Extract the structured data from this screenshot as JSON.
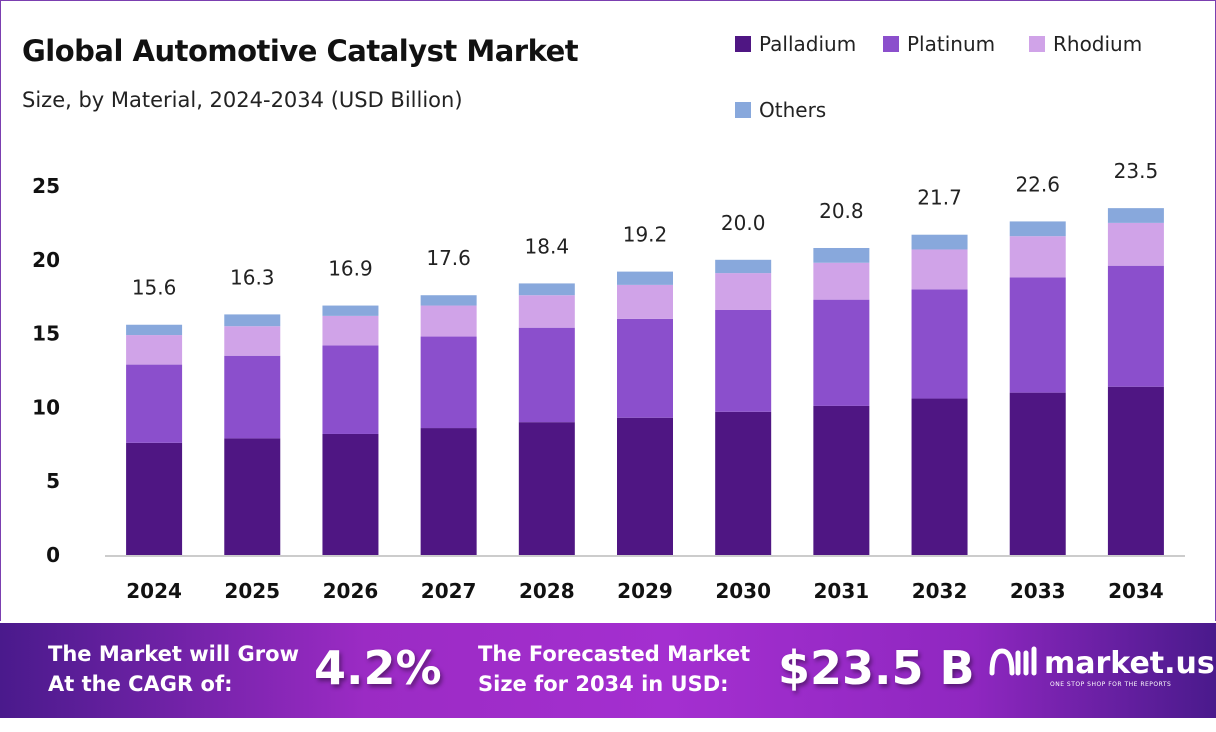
{
  "header": {
    "title": "Global Automotive Catalyst Market",
    "subtitle": "Size, by Material, 2024-2034 (USD Billion)"
  },
  "chart_data": {
    "type": "bar",
    "stacked": true,
    "categories": [
      "2024",
      "2025",
      "2026",
      "2027",
      "2028",
      "2029",
      "2030",
      "2031",
      "2032",
      "2033",
      "2034"
    ],
    "series": [
      {
        "name": "Palladium",
        "color": "#4f1683",
        "values": [
          7.6,
          7.9,
          8.2,
          8.6,
          9.0,
          9.3,
          9.7,
          10.1,
          10.6,
          11.0,
          11.4
        ]
      },
      {
        "name": "Platinum",
        "color": "#8b4fcc",
        "values": [
          5.3,
          5.6,
          6.0,
          6.2,
          6.4,
          6.7,
          6.9,
          7.2,
          7.4,
          7.8,
          8.2
        ]
      },
      {
        "name": "Rhodium",
        "color": "#d0a3e8",
        "values": [
          2.0,
          2.0,
          2.0,
          2.1,
          2.2,
          2.3,
          2.5,
          2.5,
          2.7,
          2.8,
          2.9
        ]
      },
      {
        "name": "Others",
        "color": "#88a8dc",
        "values": [
          0.7,
          0.8,
          0.7,
          0.7,
          0.8,
          0.9,
          0.9,
          1.0,
          1.0,
          1.0,
          1.0
        ]
      }
    ],
    "totals": [
      "15.6",
      "16.3",
      "16.9",
      "17.6",
      "18.4",
      "19.2",
      "20.0",
      "20.8",
      "21.7",
      "22.6",
      "23.5"
    ],
    "yticks": [
      "0",
      "5",
      "10",
      "15",
      "20",
      "25"
    ],
    "ylim": [
      0,
      25
    ],
    "grid": false,
    "legend": "top-right"
  },
  "banner": {
    "cagr_label_1": "The Market will Grow",
    "cagr_label_2": "At the CAGR of:",
    "cagr_value": "4.2%",
    "forecast_label_1": "The Forecasted Market",
    "forecast_label_2": "Size for 2034 in USD:",
    "forecast_value": "$23.5 B",
    "logo_name": "market.us",
    "logo_tagline": "ONE STOP SHOP FOR THE REPORTS"
  }
}
